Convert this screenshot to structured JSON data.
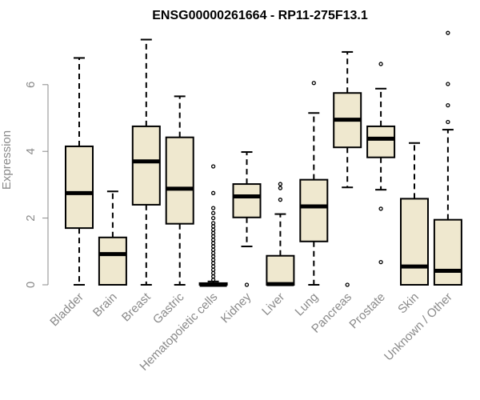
{
  "chart_data": {
    "type": "boxplot",
    "title": "ENSG00000261664 - RP11-275F13.1",
    "xlabel": "",
    "ylabel": "Expression",
    "ylim": [
      0,
      7.6
    ],
    "yticks": [
      0,
      2,
      4,
      6
    ],
    "box_fill": "#efe8cf",
    "categories": [
      "Bladder",
      "Brain",
      "Breast",
      "Gastric",
      "Hematopoietic cells",
      "Kidney",
      "Liver",
      "Lung",
      "Pancreas",
      "Prostate",
      "Skin",
      "Unknown / Other"
    ],
    "boxes": [
      {
        "category": "Bladder",
        "whisker_low": 0,
        "q1": 1.7,
        "median": 2.75,
        "q3": 4.15,
        "whisker_high": 6.8,
        "outliers": []
      },
      {
        "category": "Brain",
        "whisker_low": 0,
        "q1": 0,
        "median": 0.92,
        "q3": 1.42,
        "whisker_high": 2.8,
        "outliers": []
      },
      {
        "category": "Breast",
        "whisker_low": 0,
        "q1": 2.4,
        "median": 3.7,
        "q3": 4.75,
        "whisker_high": 7.35,
        "outliers": []
      },
      {
        "category": "Gastric",
        "whisker_low": 0,
        "q1": 1.83,
        "median": 2.88,
        "q3": 4.42,
        "whisker_high": 5.65,
        "outliers": []
      },
      {
        "category": "Hematopoietic cells",
        "whisker_low": 0,
        "q1": 0,
        "median": 0,
        "q3": 0.05,
        "whisker_high": 0.1,
        "outliers": [
          0.15,
          0.25,
          0.35,
          0.45,
          0.55,
          0.65,
          0.75,
          0.85,
          0.95,
          1.05,
          1.15,
          1.25,
          1.35,
          1.45,
          1.55,
          1.65,
          1.75,
          1.85,
          2.0,
          2.15,
          2.3,
          2.75,
          3.55
        ]
      },
      {
        "category": "Kidney",
        "whisker_low": 1.15,
        "q1": 2.02,
        "median": 2.65,
        "q3": 3.02,
        "whisker_high": 3.98,
        "outliers": [
          0
        ]
      },
      {
        "category": "Liver",
        "whisker_low": 0,
        "q1": 0,
        "median": 0.02,
        "q3": 0.87,
        "whisker_high": 2.12,
        "outliers": [
          2.55,
          2.9,
          3.02
        ]
      },
      {
        "category": "Lung",
        "whisker_low": 0,
        "q1": 1.3,
        "median": 2.35,
        "q3": 3.15,
        "whisker_high": 5.15,
        "outliers": [
          6.05
        ]
      },
      {
        "category": "Pancreas",
        "whisker_low": 2.92,
        "q1": 4.12,
        "median": 4.95,
        "q3": 5.75,
        "whisker_high": 6.98,
        "outliers": [
          0
        ]
      },
      {
        "category": "Prostate",
        "whisker_low": 2.85,
        "q1": 3.82,
        "median": 4.38,
        "q3": 4.75,
        "whisker_high": 5.88,
        "outliers": [
          0.68,
          2.28,
          6.62
        ]
      },
      {
        "category": "Skin",
        "whisker_low": 0,
        "q1": 0,
        "median": 0.55,
        "q3": 2.58,
        "whisker_high": 4.25,
        "outliers": []
      },
      {
        "category": "Unknown / Other",
        "whisker_low": 0,
        "q1": 0,
        "median": 0.42,
        "q3": 1.95,
        "whisker_high": 4.65,
        "outliers": [
          4.88,
          5.38,
          6.02,
          7.55
        ]
      }
    ]
  }
}
